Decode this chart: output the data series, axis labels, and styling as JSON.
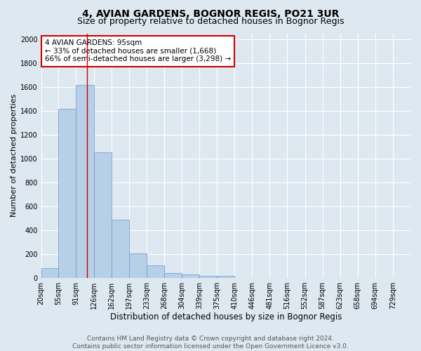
{
  "title1": "4, AVIAN GARDENS, BOGNOR REGIS, PO21 3UR",
  "title2": "Size of property relative to detached houses in Bognor Regis",
  "xlabel": "Distribution of detached houses by size in Bognor Regis",
  "ylabel": "Number of detached properties",
  "bin_labels": [
    "20sqm",
    "55sqm",
    "91sqm",
    "126sqm",
    "162sqm",
    "197sqm",
    "233sqm",
    "268sqm",
    "304sqm",
    "339sqm",
    "375sqm",
    "410sqm",
    "446sqm",
    "481sqm",
    "516sqm",
    "552sqm",
    "587sqm",
    "623sqm",
    "658sqm",
    "694sqm",
    "729sqm"
  ],
  "bin_edges": [
    2.5,
    37.5,
    73.0,
    108.5,
    144.0,
    179.5,
    215.0,
    250.5,
    286.0,
    321.5,
    357.0,
    392.5,
    428.0,
    463.5,
    499.0,
    534.5,
    570.0,
    605.5,
    641.0,
    676.5,
    712.0,
    747.5
  ],
  "bar_heights": [
    80,
    1420,
    1620,
    1050,
    490,
    205,
    105,
    40,
    30,
    20,
    15,
    0,
    0,
    0,
    0,
    0,
    0,
    0,
    0,
    0,
    0
  ],
  "bar_color": "#b8cfe8",
  "bar_edge_color": "#6699cc",
  "background_color": "#dde8f0",
  "grid_color": "#ffffff",
  "red_line_x": 95,
  "ylim": [
    0,
    2050
  ],
  "yticks": [
    0,
    200,
    400,
    600,
    800,
    1000,
    1200,
    1400,
    1600,
    1800,
    2000
  ],
  "annotation_line1": "4 AVIAN GARDENS: 95sqm",
  "annotation_line2": "← 33% of detached houses are smaller (1,668)",
  "annotation_line3": "66% of semi-detached houses are larger (3,298) →",
  "annotation_box_color": "#ffffff",
  "annotation_border_color": "#cc0000",
  "footer_text": "Contains HM Land Registry data © Crown copyright and database right 2024.\nContains public sector information licensed under the Open Government Licence v3.0.",
  "title1_fontsize": 10,
  "title2_fontsize": 9,
  "xlabel_fontsize": 8.5,
  "ylabel_fontsize": 8,
  "tick_fontsize": 7,
  "annotation_fontsize": 7.5,
  "footer_fontsize": 6.5
}
